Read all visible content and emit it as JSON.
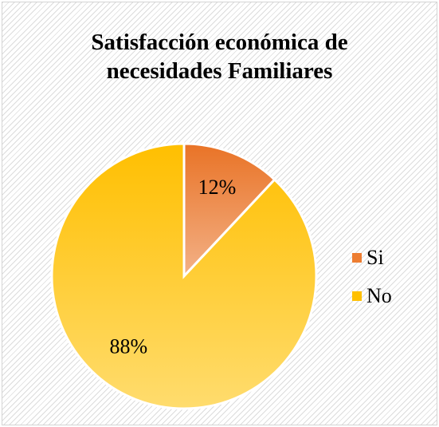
{
  "chart_data": {
    "type": "pie",
    "title": "Satisfacción económica de necesidades Familiares",
    "title_lines": [
      "Satisfacción económica de",
      "necesidades Familiares"
    ],
    "categories": [
      "Si",
      "No"
    ],
    "values": [
      12,
      88
    ],
    "labels": [
      "12%",
      "88%"
    ],
    "colors": [
      "#ed7d31",
      "#ffc000"
    ],
    "legend_position": "right",
    "grid": false
  },
  "legend": {
    "items": [
      {
        "label": "Si",
        "color": "#ed7d31"
      },
      {
        "label": "No",
        "color": "#ffc000"
      }
    ]
  }
}
